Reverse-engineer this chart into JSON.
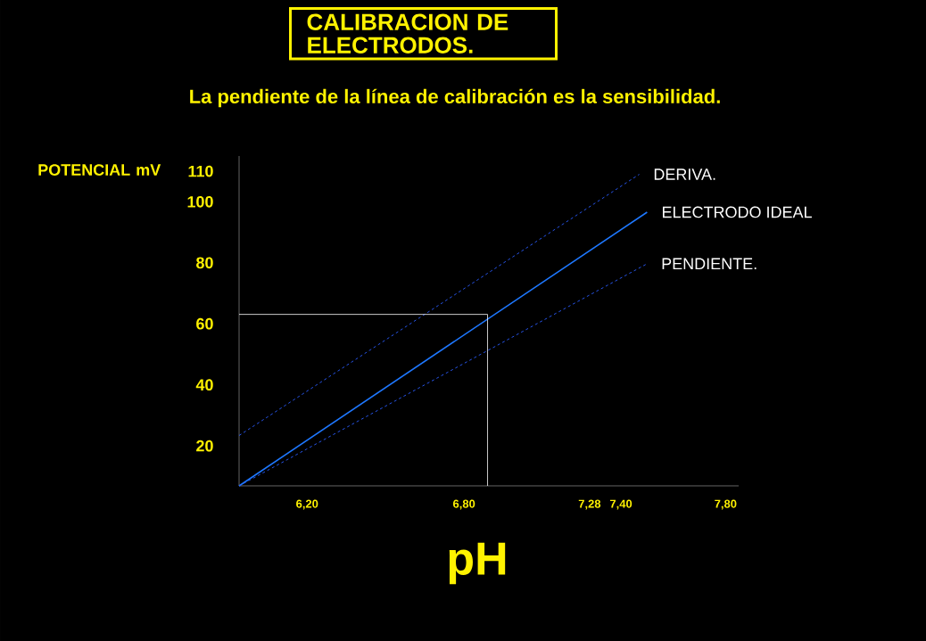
{
  "chart_data": {
    "type": "line",
    "title": "CALIBRACION DE ELECTRODOS.",
    "subtitle": "La pendiente de la línea de calibración es la sensibilidad.",
    "xlabel": "pH",
    "ylabel": "POTENCIAL mV",
    "xlim": [
      5.94,
      7.85
    ],
    "ylim": [
      6.9,
      115
    ],
    "xticks": [
      {
        "value": 6.2,
        "label": "6,20"
      },
      {
        "value": 6.8,
        "label": "6,80"
      },
      {
        "value": 7.28,
        "label": "7,28"
      },
      {
        "value": 7.4,
        "label": "7,40"
      },
      {
        "value": 7.8,
        "label": "7,80"
      }
    ],
    "yticks": [
      20,
      40,
      60,
      80,
      100,
      110
    ],
    "series": [
      {
        "name": "DERIVA.",
        "color": "#2a5cff",
        "line_style": "dashed",
        "x": [
          5.94,
          7.47
        ],
        "values": [
          23.4,
          109
        ]
      },
      {
        "name": "ELECTRODO IDEAL",
        "color": "#1e78ff",
        "line_style": "solid",
        "x": [
          5.94,
          7.5
        ],
        "values": [
          6.9,
          96.6
        ]
      },
      {
        "name": "PENDIENTE.",
        "color": "#2a5cff",
        "line_style": "dashed",
        "x": [
          5.94,
          7.5
        ],
        "values": [
          6.9,
          79.7
        ]
      },
      {
        "color": "#ffffff",
        "line_style": "solid",
        "x": [
          5.94,
          6.89,
          6.89
        ],
        "values": [
          63.1,
          63.1,
          6.9
        ]
      }
    ]
  }
}
